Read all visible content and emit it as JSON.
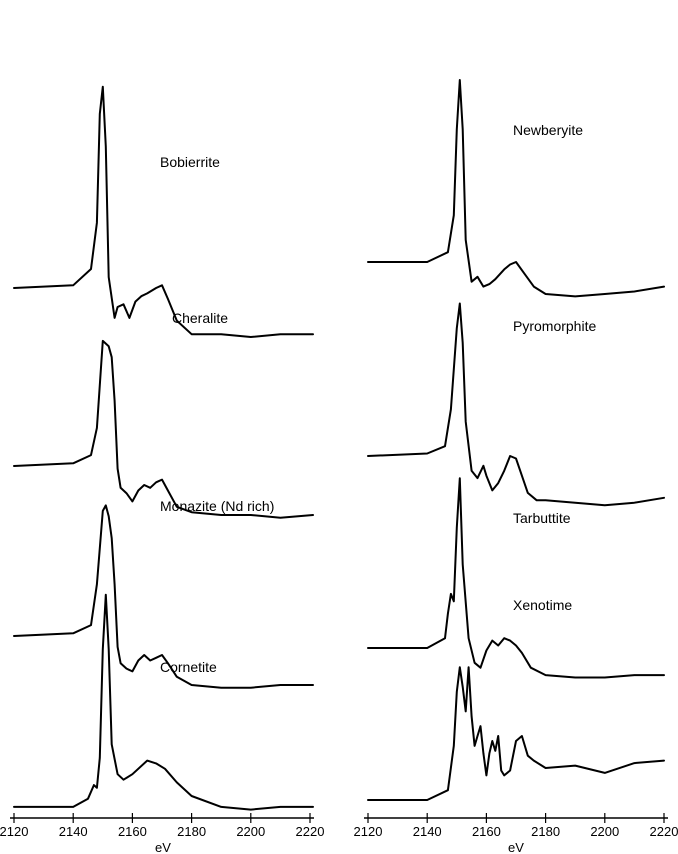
{
  "chart_data": [
    {
      "type": "line",
      "panel": "left",
      "xlabel": "eV",
      "xlim": [
        2120,
        2220
      ],
      "xticks": [
        2120,
        2140,
        2160,
        2180,
        2200,
        2220
      ],
      "series": [
        {
          "name": "Bobierrite",
          "x": [
            2120,
            2140,
            2146,
            2148,
            2149,
            2150,
            2151,
            2152,
            2154,
            2155,
            2157,
            2159,
            2161,
            2163,
            2165,
            2168,
            2170,
            2172,
            2175,
            2180,
            2190,
            2200,
            2210,
            2221
          ],
          "y": [
            0.26,
            0.27,
            0.33,
            0.5,
            0.9,
            1.0,
            0.78,
            0.3,
            0.15,
            0.19,
            0.2,
            0.15,
            0.21,
            0.23,
            0.24,
            0.26,
            0.27,
            0.22,
            0.14,
            0.09,
            0.09,
            0.08,
            0.09,
            0.09
          ]
        },
        {
          "name": "Cheralite",
          "x": [
            2120,
            2140,
            2146,
            2148,
            2150,
            2152,
            2153,
            2154,
            2155,
            2156,
            2158,
            2160,
            2162,
            2164,
            2166,
            2168,
            2170,
            2172,
            2175,
            2180,
            2190,
            2200,
            2210,
            2221
          ],
          "y": [
            0.26,
            0.27,
            0.3,
            0.4,
            0.72,
            0.7,
            0.66,
            0.5,
            0.25,
            0.18,
            0.16,
            0.13,
            0.17,
            0.19,
            0.18,
            0.2,
            0.21,
            0.17,
            0.11,
            0.09,
            0.08,
            0.08,
            0.07,
            0.08
          ]
        },
        {
          "name": "Monazite (Nd rich)",
          "x": [
            2120,
            2140,
            2146,
            2148,
            2150,
            2151,
            2152,
            2153,
            2154,
            2155,
            2156,
            2158,
            2160,
            2162,
            2164,
            2166,
            2168,
            2170,
            2172,
            2175,
            2180,
            2190,
            2200,
            2210,
            2221
          ],
          "y": [
            0.26,
            0.27,
            0.3,
            0.45,
            0.72,
            0.74,
            0.7,
            0.62,
            0.45,
            0.22,
            0.16,
            0.14,
            0.13,
            0.17,
            0.19,
            0.17,
            0.18,
            0.19,
            0.16,
            0.11,
            0.08,
            0.07,
            0.07,
            0.08,
            0.08
          ]
        },
        {
          "name": "Cornetite",
          "x": [
            2120,
            2140,
            2145,
            2147,
            2148,
            2149,
            2150,
            2151,
            2152,
            2153,
            2155,
            2157,
            2160,
            2165,
            2168,
            2171,
            2175,
            2180,
            2190,
            2200,
            2210,
            2221
          ],
          "y": [
            0.22,
            0.22,
            0.25,
            0.3,
            0.29,
            0.4,
            0.8,
            1.0,
            0.8,
            0.45,
            0.34,
            0.32,
            0.34,
            0.39,
            0.38,
            0.36,
            0.31,
            0.26,
            0.22,
            0.21,
            0.22,
            0.22
          ]
        }
      ],
      "labels": [
        "Bobierrite",
        "Cheralite",
        "Monazite (Nd rich)",
        "Cornetite"
      ]
    },
    {
      "type": "line",
      "panel": "right",
      "xlabel": "eV",
      "xlim": [
        2120,
        2220
      ],
      "xticks": [
        2120,
        2140,
        2160,
        2180,
        2200,
        2220
      ],
      "series": [
        {
          "name": "Newberyite",
          "x": [
            2120,
            2140,
            2147,
            2149,
            2150,
            2151,
            2152,
            2153,
            2155,
            2157,
            2159,
            2161,
            2163,
            2166,
            2168,
            2170,
            2173,
            2176,
            2180,
            2190,
            2200,
            2210,
            2220
          ],
          "y": [
            0.26,
            0.26,
            0.3,
            0.45,
            0.8,
            1.0,
            0.8,
            0.35,
            0.18,
            0.2,
            0.16,
            0.17,
            0.19,
            0.23,
            0.25,
            0.26,
            0.21,
            0.16,
            0.13,
            0.12,
            0.13,
            0.14,
            0.16
          ]
        },
        {
          "name": "Pyromorphite",
          "x": [
            2120,
            2140,
            2146,
            2148,
            2150,
            2151,
            2152,
            2153,
            2155,
            2157,
            2159,
            2160,
            2162,
            2164,
            2166,
            2168,
            2170,
            2172,
            2174,
            2177,
            2180,
            2190,
            2200,
            2210,
            2220
          ],
          "y": [
            0.26,
            0.27,
            0.3,
            0.45,
            0.78,
            0.88,
            0.72,
            0.4,
            0.2,
            0.17,
            0.22,
            0.18,
            0.12,
            0.15,
            0.2,
            0.26,
            0.25,
            0.18,
            0.11,
            0.08,
            0.08,
            0.07,
            0.06,
            0.07,
            0.09
          ]
        },
        {
          "name": "Tarbuttite",
          "x": [
            2120,
            2140,
            2146,
            2147,
            2148,
            2149,
            2150,
            2151,
            2152,
            2154,
            2156,
            2158,
            2160,
            2162,
            2164,
            2166,
            2168,
            2170,
            2172,
            2175,
            2180,
            2190,
            2200,
            2210,
            2220
          ],
          "y": [
            0.26,
            0.26,
            0.3,
            0.4,
            0.48,
            0.45,
            0.75,
            0.95,
            0.6,
            0.3,
            0.2,
            0.18,
            0.25,
            0.29,
            0.27,
            0.3,
            0.29,
            0.27,
            0.24,
            0.18,
            0.15,
            0.14,
            0.14,
            0.15,
            0.15
          ]
        },
        {
          "name": "Xenotime",
          "x": [
            2120,
            2140,
            2147,
            2149,
            2150,
            2151,
            2152,
            2153,
            2154,
            2155,
            2156,
            2157,
            2158,
            2159,
            2160,
            2161,
            2162,
            2163,
            2164,
            2165,
            2166,
            2168,
            2170,
            2172,
            2174,
            2176,
            2180,
            2190,
            2200,
            2210,
            2220
          ],
          "y": [
            0.26,
            0.26,
            0.3,
            0.48,
            0.7,
            0.8,
            0.72,
            0.62,
            0.8,
            0.6,
            0.48,
            0.52,
            0.56,
            0.45,
            0.36,
            0.45,
            0.5,
            0.46,
            0.52,
            0.38,
            0.36,
            0.38,
            0.5,
            0.52,
            0.44,
            0.42,
            0.39,
            0.4,
            0.37,
            0.41,
            0.42
          ]
        }
      ],
      "labels": [
        "Newberyite",
        "Pyromorphite",
        "Tarbuttite",
        "Xenotime"
      ]
    }
  ]
}
